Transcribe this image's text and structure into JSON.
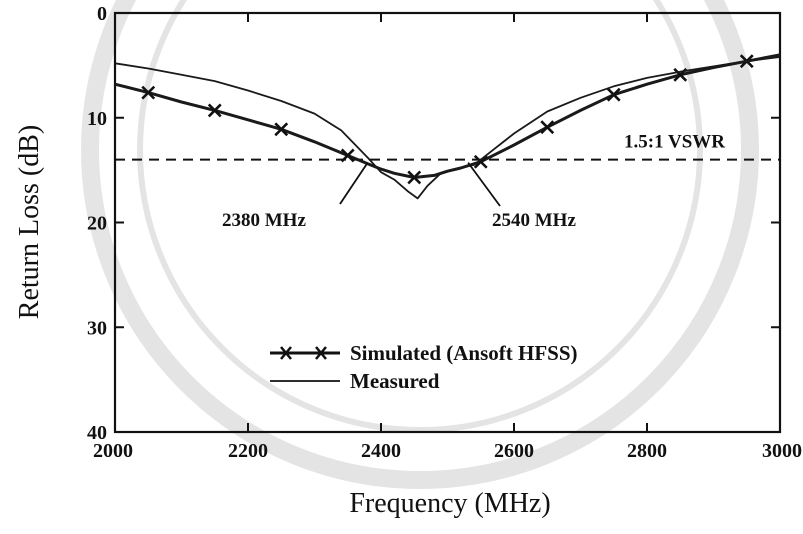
{
  "chart_data": {
    "type": "line",
    "title": "",
    "xlabel": "Frequency (MHz)",
    "ylabel": "Return Loss (dB)",
    "xlim": [
      2000,
      3000
    ],
    "ylim": [
      0,
      40
    ],
    "y_inverted": true,
    "x_ticks": [
      2000,
      2200,
      2400,
      2600,
      2800,
      3000
    ],
    "y_ticks": [
      0,
      10,
      20,
      30,
      40
    ],
    "grid": false,
    "legend_position": "lower-center",
    "series": [
      {
        "name": "Simulated (Ansoft HFSS)",
        "style": "line-with-x-markers",
        "color": "#1a1a1a",
        "x": [
          2000,
          2050,
          2100,
          2150,
          2200,
          2250,
          2300,
          2350,
          2380,
          2400,
          2420,
          2450,
          2480,
          2500,
          2520,
          2550,
          2600,
          2650,
          2700,
          2750,
          2800,
          2850,
          2900,
          2950,
          3000
        ],
        "y": [
          6.8,
          7.6,
          8.5,
          9.3,
          10.2,
          11.1,
          12.3,
          13.6,
          14.4,
          14.9,
          15.3,
          15.7,
          15.5,
          15.1,
          14.8,
          14.2,
          12.6,
          10.9,
          9.3,
          7.8,
          6.8,
          5.9,
          5.2,
          4.6,
          4.0
        ],
        "marker_x": [
          2050,
          2150,
          2250,
          2350,
          2450,
          2550,
          2650,
          2750,
          2850,
          2950
        ]
      },
      {
        "name": "Measured",
        "style": "line",
        "color": "#1a1a1a",
        "x": [
          2000,
          2050,
          2100,
          2150,
          2200,
          2250,
          2300,
          2340,
          2380,
          2400,
          2420,
          2440,
          2455,
          2470,
          2490,
          2510,
          2540,
          2570,
          2600,
          2650,
          2700,
          2750,
          2800,
          2850,
          2900,
          2950,
          3000
        ],
        "y": [
          4.8,
          5.3,
          5.9,
          6.5,
          7.4,
          8.4,
          9.6,
          11.2,
          13.8,
          15.2,
          15.9,
          17.0,
          17.7,
          16.5,
          15.3,
          14.9,
          14.5,
          13.0,
          11.5,
          9.4,
          8.1,
          7.0,
          6.2,
          5.6,
          5.1,
          4.6,
          4.2
        ]
      }
    ],
    "reference_line": {
      "y": 14.0,
      "style": "dashed",
      "label": "1.5:1 VSWR"
    },
    "annotations": [
      {
        "text": "2380 MHz",
        "points_to_x": 2380,
        "points_to_y": 14.0
      },
      {
        "text": "2540 MHz",
        "points_to_x": 2540,
        "points_to_y": 14.0
      }
    ]
  }
}
